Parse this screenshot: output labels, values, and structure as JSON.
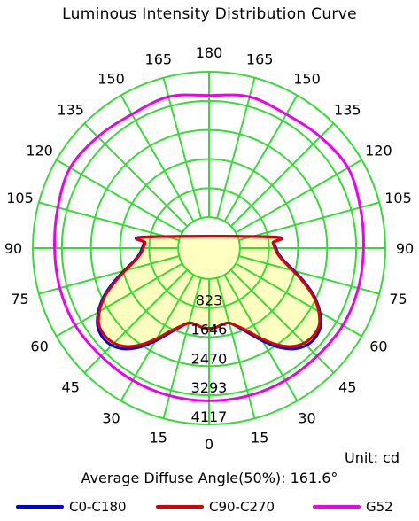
{
  "chart_data": {
    "type": "polar",
    "title": "Luminous Intensity Distribution Curve",
    "unit_text": "Unit: cd",
    "diffuse_text": "Average Diffuse Angle(50%): 161.6°",
    "radial_ticks": [
      "823",
      "1646",
      "2470",
      "3293",
      "4117"
    ],
    "radial_values": [
      823,
      1646,
      2470,
      3293,
      4117
    ],
    "radial_max": 4117,
    "angle_labels": [
      "0",
      "15",
      "30",
      "45",
      "60",
      "75",
      "90",
      "105",
      "120",
      "135",
      "150",
      "165",
      "180"
    ],
    "angle_values": [
      0,
      15,
      30,
      45,
      60,
      75,
      90,
      105,
      120,
      135,
      150,
      165,
      180
    ],
    "grid": true,
    "grid_color": "#33dd33",
    "fill_color": "#ffffc0",
    "series": [
      {
        "name": "C0-C180",
        "color": "#0000dd",
        "angles": [
          0,
          5,
          10,
          15,
          20,
          25,
          30,
          35,
          40,
          45,
          50,
          55,
          60,
          65,
          70,
          75,
          80,
          85,
          90,
          95,
          100
        ],
        "values": [
          1400,
          1380,
          1320,
          1320,
          1500,
          1780,
          2160,
          2550,
          2850,
          3020,
          3060,
          2980,
          2750,
          2430,
          2030,
          1620,
          1300,
          1110,
          1020,
          970,
          950
        ]
      },
      {
        "name": "C90-C270",
        "color": "#dd0000",
        "angles": [
          0,
          5,
          10,
          15,
          20,
          25,
          30,
          35,
          40,
          45,
          50,
          55,
          60,
          65,
          70,
          75,
          80,
          85,
          90,
          95,
          100
        ],
        "values": [
          1400,
          1380,
          1320,
          1320,
          1480,
          1720,
          2080,
          2460,
          2760,
          2930,
          2980,
          2930,
          2710,
          2390,
          1980,
          1580,
          1270,
          1080,
          990,
          940,
          930
        ]
      },
      {
        "name": "G52",
        "color": "#ee00ee",
        "angles": [
          0,
          15,
          30,
          45,
          60,
          75,
          90,
          105,
          120,
          135,
          150,
          165,
          180
        ],
        "values": [
          3450,
          3450,
          3450,
          3450,
          3500,
          3500,
          3500,
          3560,
          3670,
          3580,
          3500,
          3560,
          3450
        ]
      }
    ],
    "legend_position": "bottom"
  }
}
